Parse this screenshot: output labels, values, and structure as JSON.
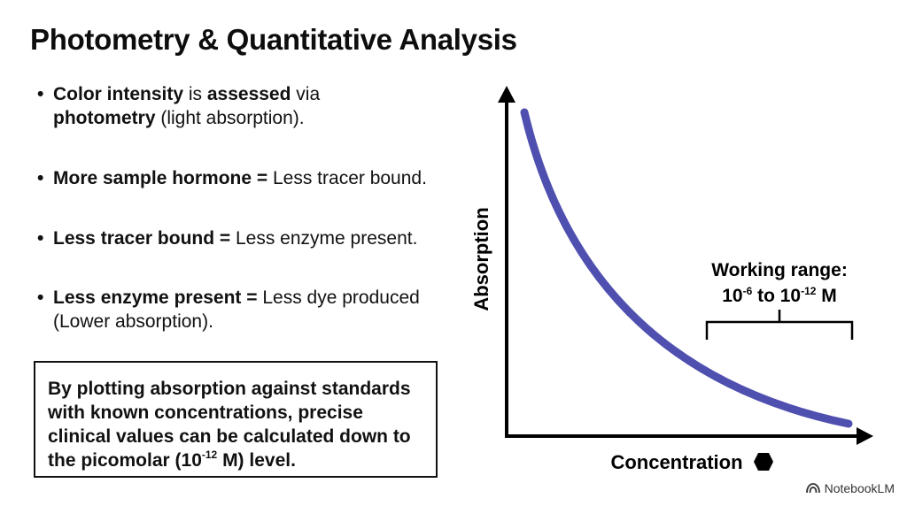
{
  "title": "Photometry & Quantitative Analysis",
  "bullets": [
    {
      "b1": "Color intensity",
      "t1": " is ",
      "b2": "assessed",
      "t2": " via",
      "b3": "photometry",
      "t3": " (light absorption)."
    },
    {
      "b1": "More sample hormone =",
      "t1": " Less tracer bound."
    },
    {
      "b1": "Less tracer bound =",
      "t1": " Less enzyme present."
    },
    {
      "b1": "Less enzyme present =",
      "t1": " Less dye produced (Lower absorption)."
    }
  ],
  "callout": {
    "pre": "By plotting absorption against standards with known concentrations, precise clinical values can be calculated down to the picomolar (10",
    "sup": "-12",
    "post": " M) level."
  },
  "diagram": {
    "y_label": "Absorption",
    "x_label": "Concentration",
    "range_title": "Working range:",
    "range_base1": "10",
    "range_exp1": "-6",
    "range_mid": " to ",
    "range_base2": "10",
    "range_exp2": "-12",
    "range_unit": " M",
    "curve_color": "#4f4fb0"
  },
  "brand": {
    "name": "NotebookLM",
    "icon": "notebooklm-logo-icon"
  }
}
